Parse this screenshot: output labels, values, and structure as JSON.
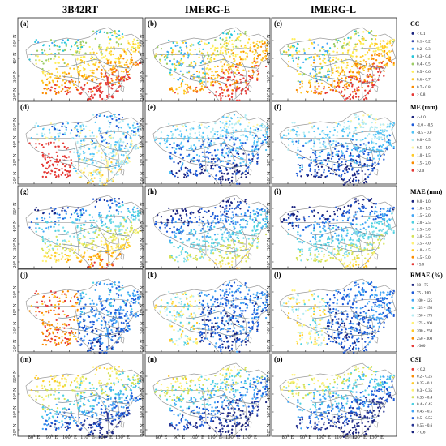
{
  "columns": [
    "3B42RT",
    "IMERG-E",
    "IMERG-L"
  ],
  "panel_labels": [
    "(a)",
    "(b)",
    "(c)",
    "(d)",
    "(e)",
    "(f)",
    "(g)",
    "(h)",
    "(i)",
    "(j)",
    "(k)",
    "(l)",
    "(m)",
    "(n)",
    "(o)"
  ],
  "lat_ticks": [
    "50° N",
    "40° N",
    "30° N",
    "20° N"
  ],
  "lon_ticks": [
    "80° E",
    "90° E",
    "100° E",
    "110° E",
    "120° E",
    "130° E"
  ],
  "metrics": [
    {
      "title": "CC",
      "classes": [
        "< 0.1",
        "0.1 - 0.2",
        "0.2 - 0.3",
        "0.3 - 0.4",
        "0.4 - 0.5",
        "0.5 - 0.6",
        "0.6 - 0.7",
        "0.7 - 0.8",
        "> 0.8"
      ],
      "colors": [
        "#1a237e",
        "#3949ab",
        "#42a5f5",
        "#26c6da",
        "#9ccc65",
        "#ffee58",
        "#ffca28",
        "#fb8c00",
        "#e53935"
      ]
    },
    {
      "title": "ME (mm)",
      "classes": [
        "<-1.0",
        "-1.0 - -0.5",
        "-0.5 - 0.0",
        "0.0 - 0.5",
        "0.5 - 1.0",
        "1.0 - 1.5",
        "1.5 - 2.0",
        ">2.0"
      ],
      "colors": [
        "#1a237e",
        "#1e5bd8",
        "#4fc3f7",
        "#b2ebf2",
        "#fff59d",
        "#ffca28",
        "#fb8c00",
        "#e53935"
      ]
    },
    {
      "title": "MAE (mm)",
      "classes": [
        "0.0 - 1.0",
        "1.0 - 1.5",
        "1.5 - 2.0",
        "2.0 - 2.5",
        "2.5 - 3.0",
        "3.0 - 3.5",
        "3.5 - 4.0",
        "4.0 - 4.5",
        "4.5 - 5.0",
        ">5.0"
      ],
      "colors": [
        "#1a237e",
        "#1e5bd8",
        "#42a5f5",
        "#4dd0e1",
        "#80deea",
        "#d4e157",
        "#fff176",
        "#ffca28",
        "#fb8c00",
        "#e53935"
      ]
    },
    {
      "title": "RMAE (%)",
      "classes": [
        "50 - 75",
        "75 - 100",
        "100 - 125",
        "125 - 150",
        "150 - 175",
        "175 - 200",
        "200 - 250",
        "250 - 300",
        ">300"
      ],
      "colors": [
        "#1a237e",
        "#1e5bd8",
        "#42a5f5",
        "#4dd0e1",
        "#b2ebf2",
        "#fff176",
        "#ffca28",
        "#fb8c00",
        "#e53935"
      ]
    },
    {
      "title": "CSI",
      "classes": [
        "< 0.2",
        "0.2 - 0.25",
        "0.25 - 0.3",
        "0.3 - 0.35",
        "0.35 - 0.4",
        "0.4 - 0.45",
        "0.45 - 0.5",
        "0.5 - 0.55",
        "0.55 - 0.6",
        "> 0.6"
      ],
      "colors": [
        "#e53935",
        "#fb8c00",
        "#ffca28",
        "#fff176",
        "#d4e157",
        "#4dd0e1",
        "#42a5f5",
        "#1e5bd8",
        "#283593",
        "#1a237e"
      ]
    }
  ]
}
